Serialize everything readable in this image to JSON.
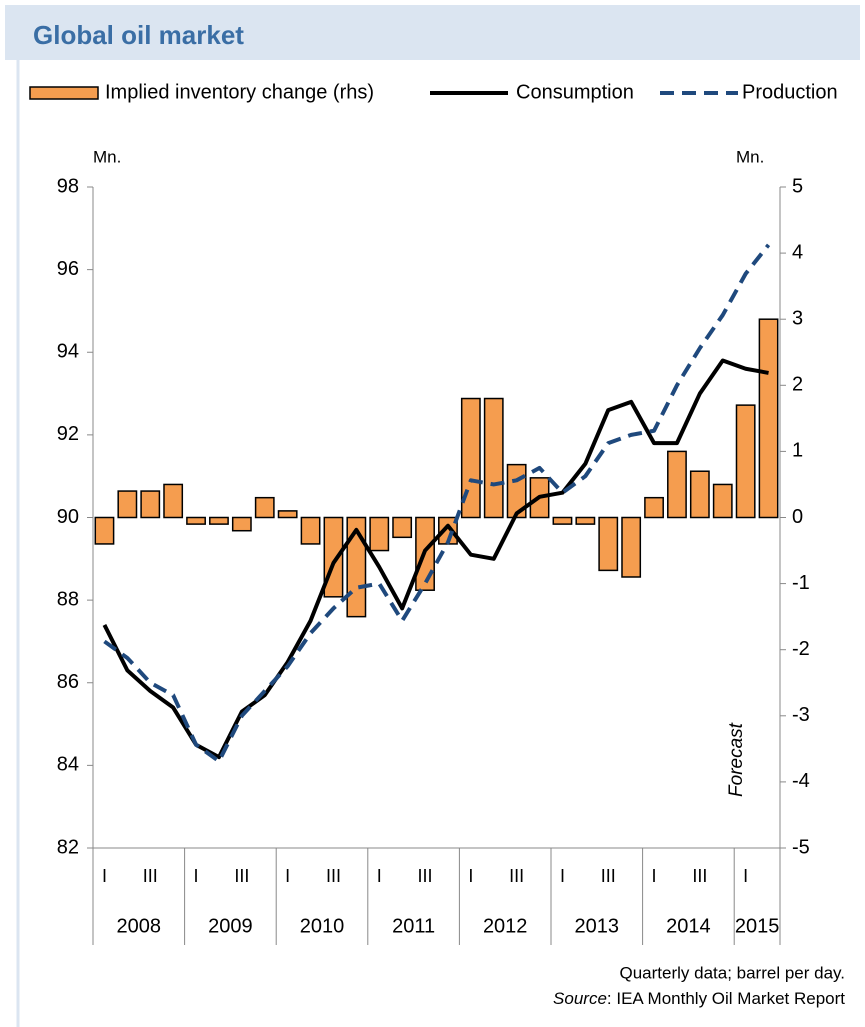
{
  "chart_data": {
    "type": "bar-line",
    "title": "Global oil market",
    "y_unit": "Mn.",
    "y2_unit": "Mn.",
    "categories": [
      "I",
      null,
      "III",
      null,
      "I",
      null,
      "III",
      null,
      "I",
      null,
      "III",
      null,
      "I",
      null,
      "III",
      null,
      "I",
      null,
      "III",
      null,
      "I",
      null,
      "III",
      null,
      "I",
      null,
      "III",
      null,
      "I",
      null
    ],
    "years": [
      "2008",
      "2009",
      "2010",
      "2011",
      "2012",
      "2013",
      "2014",
      "2015"
    ],
    "series": [
      {
        "name": "Implied inventory change (rhs)",
        "type": "bar",
        "axis": "y2",
        "color": "#f59d4f",
        "values": [
          -0.4,
          0.4,
          0.4,
          0.5,
          -0.1,
          -0.1,
          -0.2,
          0.3,
          0.1,
          -0.4,
          -1.2,
          -1.5,
          -0.5,
          -0.3,
          -1.1,
          -0.4,
          1.8,
          1.8,
          0.8,
          0.6,
          -0.1,
          -0.1,
          -0.8,
          -0.9,
          0.3,
          1.0,
          0.7,
          0.5,
          1.7,
          3.0
        ]
      },
      {
        "name": "Consumption",
        "type": "line",
        "color": "#000000",
        "dash": false,
        "values": [
          87.4,
          86.3,
          85.8,
          85.4,
          84.5,
          84.2,
          85.3,
          85.7,
          86.5,
          87.5,
          88.9,
          89.7,
          88.8,
          87.8,
          89.2,
          89.8,
          89.1,
          89.0,
          90.1,
          90.5,
          90.6,
          91.3,
          92.6,
          92.8,
          91.8,
          91.8,
          93.0,
          93.8,
          93.6,
          93.5
        ]
      },
      {
        "name": "Production",
        "type": "line",
        "color": "#1f497d",
        "dash": true,
        "values": [
          87.0,
          86.6,
          86.0,
          85.7,
          84.5,
          84.1,
          85.2,
          85.8,
          86.4,
          87.2,
          87.8,
          88.3,
          88.4,
          87.5,
          88.4,
          89.4,
          90.9,
          90.8,
          90.9,
          91.2,
          90.6,
          91.0,
          91.8,
          92.0,
          92.1,
          93.2,
          94.1,
          94.9,
          95.9,
          96.6
        ]
      }
    ],
    "ylim": [
      82,
      98
    ],
    "yticks": [
      82,
      84,
      86,
      88,
      90,
      92,
      94,
      96,
      98
    ],
    "y2lim": [
      -5,
      5
    ],
    "y2ticks": [
      -5,
      -4,
      -3,
      -2,
      -1,
      0,
      1,
      2,
      3,
      4,
      5
    ],
    "annotation": "Forecast",
    "note": "Quarterly data; barrel per day.",
    "source_label": "Source",
    "source_text": ": IEA Monthly Oil Market Report"
  }
}
